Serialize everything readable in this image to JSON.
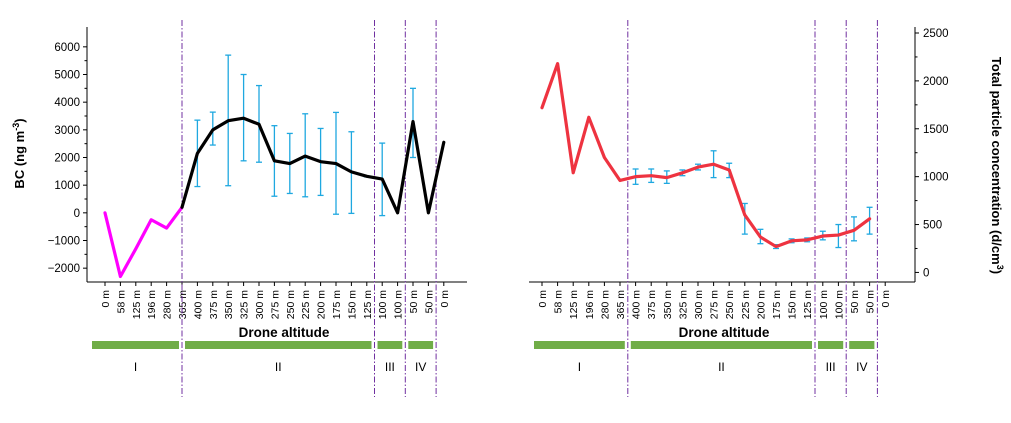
{
  "chart_data": [
    {
      "type": "line",
      "title": "",
      "xlabel": "Drone altitude",
      "ylabel": "BC (ng m",
      "ylabel_sup": "-3",
      "ylabel_close": ")",
      "ylim": [
        -2500,
        6500
      ],
      "yticks": [
        -2000,
        -1000,
        0,
        1000,
        2000,
        3000,
        4000,
        5000,
        6000
      ],
      "ytick_labels": [
        "−2000",
        "−1000",
        "0",
        "1000",
        "2000",
        "3000",
        "4000",
        "5000",
        "6000"
      ],
      "categories": [
        "0 m",
        "58 m",
        "125 m",
        "196 m",
        "280 m",
        "365 m",
        "400 m",
        "375 m",
        "350 m",
        "325 m",
        "300 m",
        "275 m",
        "250 m",
        "225 m",
        "200 m",
        "175 m",
        "150 m",
        "125 m",
        "100 m",
        "100 m",
        "50 m",
        "50 m",
        "0 m"
      ],
      "grid": false,
      "series": [
        {
          "color": "#ff00ff",
          "x": [
            0,
            1,
            2,
            3,
            4,
            5
          ],
          "values": [
            0,
            -2300,
            -1300,
            -250,
            -550,
            200
          ]
        },
        {
          "color": "#000000",
          "x": [
            5,
            6,
            7,
            8,
            9,
            10,
            11,
            12,
            13,
            14,
            15,
            16,
            17,
            18,
            19,
            20,
            21,
            22
          ],
          "values": [
            200,
            2150,
            3000,
            3330,
            3420,
            3200,
            1880,
            1780,
            2050,
            1850,
            1780,
            1480,
            1320,
            1220,
            0,
            3300,
            0,
            2550
          ],
          "error_x": [
            6,
            7,
            8,
            9,
            10,
            11,
            12,
            13,
            14,
            15,
            16,
            17,
            18,
            20
          ],
          "error_low": [
            950,
            2450,
            980,
            1880,
            1830,
            600,
            700,
            580,
            630,
            -50,
            -20,
            1300,
            -100,
            2000
          ],
          "error_high": [
            3350,
            3640,
            5700,
            5000,
            4600,
            3150,
            2870,
            3580,
            3050,
            3630,
            2930,
            1320,
            2520,
            4500
          ],
          "error_color": "#1fa8e0"
        }
      ],
      "phase_lines_x": [
        5,
        17.5,
        19.5,
        21.5
      ],
      "phases": [
        {
          "label": "I",
          "from": 0,
          "to": 5
        },
        {
          "label": "II",
          "from": 5,
          "to": 17.5
        },
        {
          "label": "III",
          "from": 17.5,
          "to": 19.5
        },
        {
          "label": "IV",
          "from": 19.5,
          "to": 21.5
        }
      ],
      "phase_bar_color": "#70ad47",
      "phase_line_color": "#7030a0"
    },
    {
      "type": "line",
      "title": "",
      "xlabel": "Drone altitude",
      "ylabel": "Total particle concentration (d/cm",
      "ylabel_sup": "3",
      "ylabel_close": ")",
      "ylim": [
        -100,
        2500
      ],
      "yticks": [
        0,
        500,
        1000,
        1500,
        2000,
        2500
      ],
      "ytick_labels": [
        "0",
        "500",
        "1000",
        "1500",
        "2000",
        "2500"
      ],
      "categories": [
        "0 m",
        "58 m",
        "125 m",
        "196 m",
        "280 m",
        "365 m",
        "400 m",
        "375 m",
        "350 m",
        "325 m",
        "300 m",
        "275 m",
        "250 m",
        "225 m",
        "200 m",
        "175 m",
        "150 m",
        "125 m",
        "100 m",
        "100 m",
        "50 m",
        "50 m",
        "0 m"
      ],
      "grid": false,
      "series": [
        {
          "color": "#ee3340",
          "x": [
            0,
            1,
            2,
            3,
            4,
            5,
            6,
            7,
            8,
            9,
            10,
            11,
            12,
            13,
            14,
            15,
            16,
            17,
            18,
            19,
            20,
            21
          ],
          "values": [
            1720,
            2180,
            1040,
            1620,
            1200,
            960,
            1000,
            1010,
            990,
            1040,
            1100,
            1130,
            1070,
            600,
            370,
            270,
            330,
            340,
            380,
            390,
            440,
            560
          ],
          "error_x": [
            6,
            7,
            8,
            9,
            10,
            11,
            12,
            13,
            14,
            15,
            16,
            17,
            18,
            19,
            20,
            21
          ],
          "error_low": [
            920,
            940,
            930,
            1010,
            1070,
            990,
            990,
            400,
            300,
            250,
            310,
            320,
            340,
            260,
            330,
            400
          ],
          "error_high": [
            1080,
            1080,
            1060,
            1070,
            1130,
            1270,
            1140,
            720,
            450,
            290,
            350,
            360,
            430,
            500,
            580,
            680
          ],
          "error_color": "#1fa8e0"
        }
      ],
      "phase_lines_x": [
        5.5,
        17.5,
        19.5,
        21.5
      ],
      "phases": [
        {
          "label": "I",
          "from": 0,
          "to": 5.5
        },
        {
          "label": "II",
          "from": 5.5,
          "to": 17.5
        },
        {
          "label": "III",
          "from": 17.5,
          "to": 19.5
        },
        {
          "label": "IV",
          "from": 19.5,
          "to": 21.5
        }
      ],
      "phase_bar_color": "#70ad47",
      "phase_line_color": "#7030a0"
    }
  ]
}
